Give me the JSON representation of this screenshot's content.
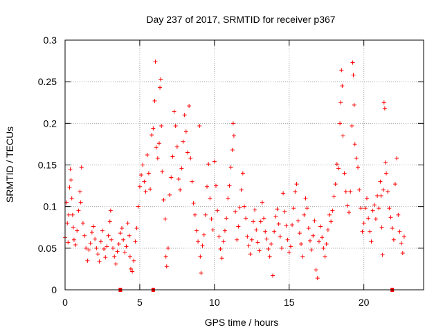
{
  "chart_data": {
    "type": "scatter",
    "title": "Day 237 of 2017, SRMTID for receiver p367",
    "xlabel": "GPS time / hours",
    "ylabel": "SRMTID / TECUs",
    "xlim": [
      0,
      24
    ],
    "ylim": [
      0,
      0.3
    ],
    "x_ticks": [
      0,
      5,
      10,
      15,
      20
    ],
    "x_tick_labels": [
      "0",
      "5",
      "10",
      "15",
      "20"
    ],
    "y_ticks": [
      0,
      0.05,
      0.1,
      0.15,
      0.2,
      0.25,
      0.3
    ],
    "y_tick_labels": [
      "0",
      "0.05",
      "0.1",
      "0.15",
      "0.2",
      "0.25",
      "0.3"
    ],
    "grid": true,
    "marker": "+",
    "color": "#ff0000",
    "baseline_markers_x": [
      3.7,
      5.9,
      21.9
    ],
    "series": [
      {
        "name": "SRMTID",
        "points": [
          [
            0.0,
            0.063
          ],
          [
            0.1,
            0.105
          ],
          [
            0.15,
            0.08
          ],
          [
            0.2,
            0.057
          ],
          [
            0.25,
            0.09
          ],
          [
            0.3,
            0.123
          ],
          [
            0.35,
            0.145
          ],
          [
            0.4,
            0.132
          ],
          [
            0.45,
            0.11
          ],
          [
            0.5,
            0.09
          ],
          [
            0.55,
            0.075
          ],
          [
            0.6,
            0.06
          ],
          [
            0.7,
            0.054
          ],
          [
            0.8,
            0.071
          ],
          [
            0.9,
            0.095
          ],
          [
            1.0,
            0.118
          ],
          [
            1.05,
            0.105
          ],
          [
            1.1,
            0.147
          ],
          [
            1.2,
            0.08
          ],
          [
            1.3,
            0.065
          ],
          [
            1.4,
            0.05
          ],
          [
            1.5,
            0.035
          ],
          [
            1.6,
            0.048
          ],
          [
            1.7,
            0.056
          ],
          [
            1.8,
            0.069
          ],
          [
            1.9,
            0.076
          ],
          [
            2.0,
            0.061
          ],
          [
            2.1,
            0.05
          ],
          [
            2.2,
            0.043
          ],
          [
            2.3,
            0.034
          ],
          [
            2.4,
            0.058
          ],
          [
            2.5,
            0.071
          ],
          [
            2.6,
            0.049
          ],
          [
            2.7,
            0.039
          ],
          [
            2.8,
            0.052
          ],
          [
            2.9,
            0.065
          ],
          [
            3.0,
            0.082
          ],
          [
            3.05,
            0.095
          ],
          [
            3.1,
            0.06
          ],
          [
            3.2,
            0.05
          ],
          [
            3.3,
            0.04
          ],
          [
            3.4,
            0.031
          ],
          [
            3.5,
            0.046
          ],
          [
            3.6,
            0.055
          ],
          [
            3.7,
            0.068
          ],
          [
            3.8,
            0.074
          ],
          [
            3.9,
            0.06
          ],
          [
            4.0,
            0.045
          ],
          [
            4.1,
            0.052
          ],
          [
            4.2,
            0.08
          ],
          [
            4.3,
            0.065
          ],
          [
            4.35,
            0.04
          ],
          [
            4.4,
            0.025
          ],
          [
            4.5,
            0.022
          ],
          [
            4.6,
            0.035
          ],
          [
            4.7,
            0.058
          ],
          [
            4.8,
            0.074
          ],
          [
            4.9,
            0.1
          ],
          [
            5.0,
            0.124
          ],
          [
            5.1,
            0.138
          ],
          [
            5.2,
            0.15
          ],
          [
            5.3,
            0.13
          ],
          [
            5.4,
            0.118
          ],
          [
            5.5,
            0.162
          ],
          [
            5.6,
            0.14
          ],
          [
            5.7,
            0.121
          ],
          [
            5.8,
            0.186
          ],
          [
            5.9,
            0.194
          ],
          [
            6.0,
            0.227
          ],
          [
            6.05,
            0.274
          ],
          [
            6.1,
            0.171
          ],
          [
            6.2,
            0.158
          ],
          [
            6.3,
            0.176
          ],
          [
            6.35,
            0.243
          ],
          [
            6.4,
            0.253
          ],
          [
            6.45,
            0.197
          ],
          [
            6.5,
            0.142
          ],
          [
            6.6,
            0.108
          ],
          [
            6.7,
            0.085
          ],
          [
            6.75,
            0.04
          ],
          [
            6.8,
            0.028
          ],
          [
            6.9,
            0.05
          ],
          [
            7.0,
            0.114
          ],
          [
            7.1,
            0.135
          ],
          [
            7.2,
            0.16
          ],
          [
            7.3,
            0.214
          ],
          [
            7.4,
            0.197
          ],
          [
            7.5,
            0.172
          ],
          [
            7.6,
            0.133
          ],
          [
            7.7,
            0.12
          ],
          [
            7.8,
            0.146
          ],
          [
            7.9,
            0.178
          ],
          [
            8.0,
            0.21
          ],
          [
            8.1,
            0.19
          ],
          [
            8.2,
            0.165
          ],
          [
            8.3,
            0.221
          ],
          [
            8.4,
            0.158
          ],
          [
            8.5,
            0.13
          ],
          [
            8.6,
            0.104
          ],
          [
            8.7,
            0.09
          ],
          [
            8.8,
            0.071
          ],
          [
            8.9,
            0.058
          ],
          [
            9.0,
            0.197
          ],
          [
            9.05,
            0.04
          ],
          [
            9.1,
            0.02
          ],
          [
            9.2,
            0.053
          ],
          [
            9.3,
            0.066
          ],
          [
            9.4,
            0.09
          ],
          [
            9.5,
            0.124
          ],
          [
            9.6,
            0.151
          ],
          [
            9.7,
            0.11
          ],
          [
            9.8,
            0.085
          ],
          [
            9.9,
            0.072
          ],
          [
            10.0,
            0.154
          ],
          [
            10.1,
            0.125
          ],
          [
            10.2,
            0.095
          ],
          [
            10.3,
            0.064
          ],
          [
            10.4,
            0.049
          ],
          [
            10.5,
            0.038
          ],
          [
            10.6,
            0.058
          ],
          [
            10.7,
            0.071
          ],
          [
            10.8,
            0.086
          ],
          [
            10.9,
            0.11
          ],
          [
            11.0,
            0.125
          ],
          [
            11.1,
            0.147
          ],
          [
            11.2,
            0.168
          ],
          [
            11.25,
            0.2
          ],
          [
            11.3,
            0.185
          ],
          [
            11.4,
            0.094
          ],
          [
            11.5,
            0.06
          ],
          [
            11.6,
            0.076
          ],
          [
            11.7,
            0.099
          ],
          [
            11.8,
            0.12
          ],
          [
            11.9,
            0.14
          ],
          [
            12.0,
            0.1
          ],
          [
            12.1,
            0.086
          ],
          [
            12.2,
            0.064
          ],
          [
            12.3,
            0.053
          ],
          [
            12.4,
            0.043
          ],
          [
            12.5,
            0.06
          ],
          [
            12.6,
            0.082
          ],
          [
            12.7,
            0.096
          ],
          [
            12.8,
            0.072
          ],
          [
            12.9,
            0.057
          ],
          [
            13.0,
            0.047
          ],
          [
            13.1,
            0.082
          ],
          [
            13.2,
            0.105
          ],
          [
            13.3,
            0.086
          ],
          [
            13.4,
            0.07
          ],
          [
            13.5,
            0.061
          ],
          [
            13.6,
            0.049
          ],
          [
            13.7,
            0.04
          ],
          [
            13.8,
            0.055
          ],
          [
            13.9,
            0.017
          ],
          [
            14.0,
            0.07
          ],
          [
            14.1,
            0.088
          ],
          [
            14.2,
            0.097
          ],
          [
            14.3,
            0.079
          ],
          [
            14.4,
            0.064
          ],
          [
            14.5,
            0.05
          ],
          [
            14.6,
            0.116
          ],
          [
            14.7,
            0.094
          ],
          [
            14.8,
            0.077
          ],
          [
            14.9,
            0.06
          ],
          [
            15.0,
            0.045
          ],
          [
            15.1,
            0.052
          ],
          [
            15.2,
            0.078
          ],
          [
            15.3,
            0.098
          ],
          [
            15.4,
            0.118
          ],
          [
            15.5,
            0.127
          ],
          [
            15.6,
            0.083
          ],
          [
            15.7,
            0.068
          ],
          [
            15.8,
            0.055
          ],
          [
            15.9,
            0.04
          ],
          [
            16.0,
            0.09
          ],
          [
            16.1,
            0.11
          ],
          [
            16.2,
            0.098
          ],
          [
            16.3,
            0.074
          ],
          [
            16.4,
            0.059
          ],
          [
            16.5,
            0.048
          ],
          [
            16.6,
            0.065
          ],
          [
            16.7,
            0.083
          ],
          [
            16.8,
            0.024
          ],
          [
            16.9,
            0.014
          ],
          [
            17.0,
            0.058
          ],
          [
            17.1,
            0.076
          ],
          [
            17.2,
            0.063
          ],
          [
            17.3,
            0.05
          ],
          [
            17.4,
            0.04
          ],
          [
            17.5,
            0.055
          ],
          [
            17.6,
            0.072
          ],
          [
            17.7,
            0.09
          ],
          [
            17.8,
            0.082
          ],
          [
            17.9,
            0.095
          ],
          [
            18.0,
            0.112
          ],
          [
            18.1,
            0.127
          ],
          [
            18.2,
            0.151
          ],
          [
            18.3,
            0.146
          ],
          [
            18.4,
            0.2
          ],
          [
            18.45,
            0.225
          ],
          [
            18.5,
            0.264
          ],
          [
            18.55,
            0.245
          ],
          [
            18.6,
            0.185
          ],
          [
            18.7,
            0.14
          ],
          [
            18.8,
            0.118
          ],
          [
            18.9,
            0.101
          ],
          [
            19.0,
            0.093
          ],
          [
            19.1,
            0.118
          ],
          [
            19.2,
            0.197
          ],
          [
            19.25,
            0.273
          ],
          [
            19.3,
            0.258
          ],
          [
            19.35,
            0.222
          ],
          [
            19.4,
            0.175
          ],
          [
            19.5,
            0.158
          ],
          [
            19.6,
            0.147
          ],
          [
            19.7,
            0.12
          ],
          [
            19.8,
            0.098
          ],
          [
            19.9,
            0.07
          ],
          [
            20.0,
            0.08
          ],
          [
            20.1,
            0.098
          ],
          [
            20.2,
            0.11
          ],
          [
            20.3,
            0.086
          ],
          [
            20.4,
            0.07
          ],
          [
            20.5,
            0.058
          ],
          [
            20.6,
            0.095
          ],
          [
            20.7,
            0.102
          ],
          [
            20.8,
            0.085
          ],
          [
            20.9,
            0.113
          ],
          [
            21.0,
            0.098
          ],
          [
            21.1,
            0.13
          ],
          [
            21.15,
            0.113
          ],
          [
            21.2,
            0.075
          ],
          [
            21.25,
            0.042
          ],
          [
            21.3,
            0.12
          ],
          [
            21.35,
            0.225
          ],
          [
            21.4,
            0.218
          ],
          [
            21.45,
            0.153
          ],
          [
            21.5,
            0.14
          ],
          [
            21.6,
            0.118
          ],
          [
            21.7,
            0.098
          ],
          [
            21.8,
            0.087
          ],
          [
            21.9,
            0.074
          ],
          [
            22.0,
            0.06
          ],
          [
            22.1,
            0.127
          ],
          [
            22.2,
            0.158
          ],
          [
            22.3,
            0.09
          ],
          [
            22.4,
            0.07
          ],
          [
            22.5,
            0.056
          ],
          [
            22.6,
            0.044
          ],
          [
            22.7,
            0.064
          ]
        ]
      }
    ]
  }
}
